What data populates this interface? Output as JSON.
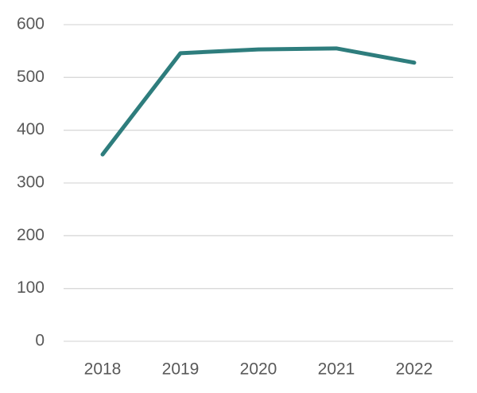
{
  "chart_data": {
    "type": "line",
    "categories": [
      "2018",
      "2019",
      "2020",
      "2021",
      "2022"
    ],
    "values": [
      354,
      546,
      553,
      555,
      528
    ],
    "color": "#2e7d7d",
    "ylim": [
      0,
      600
    ],
    "yticks": [
      0,
      100,
      200,
      300,
      400,
      500,
      600
    ],
    "grid": true
  }
}
